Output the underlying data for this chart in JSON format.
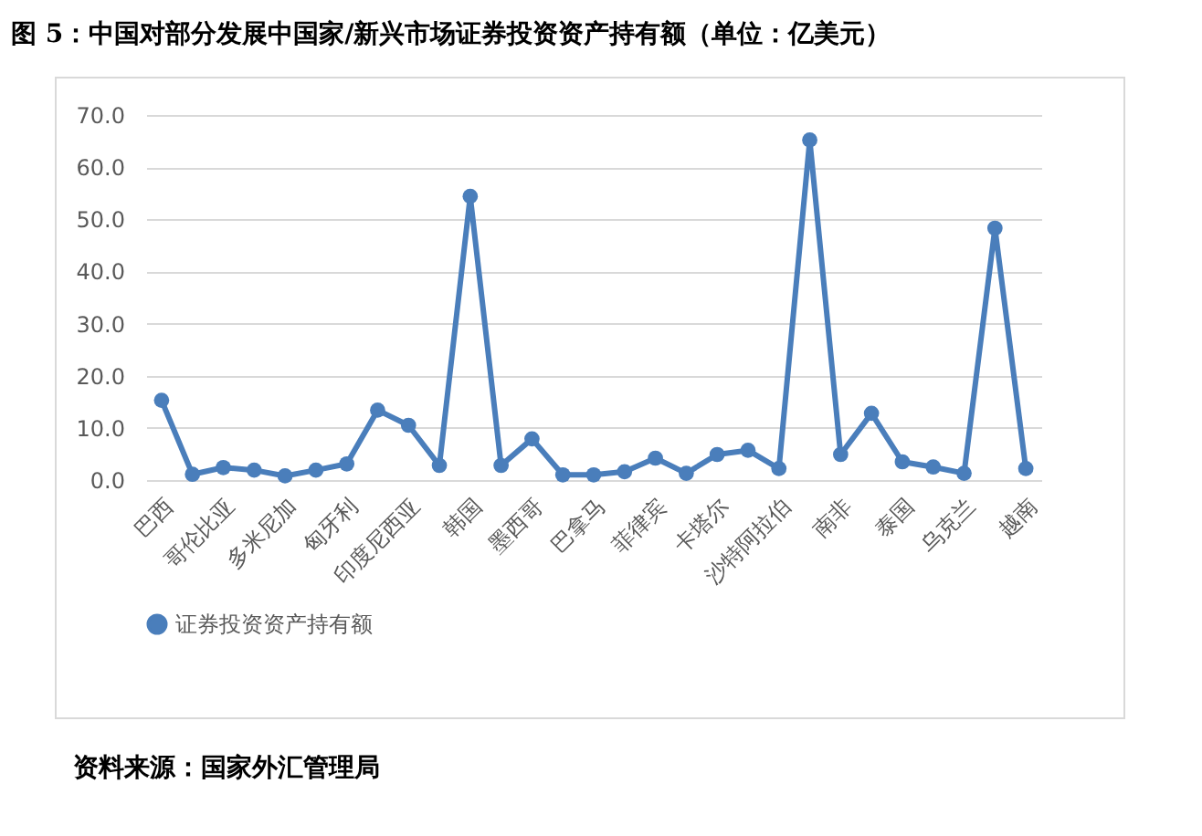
{
  "chart_data": {
    "type": "line",
    "title": "图 5：中国对部分发展中国家/新兴市场证券投资资产持有额（单位：亿美元）",
    "categories": [
      "巴西",
      null,
      "哥伦比亚",
      null,
      "多米尼加",
      null,
      "匈牙利",
      null,
      "印度尼西亚",
      null,
      "韩国",
      null,
      "墨西哥",
      null,
      "巴拿马",
      null,
      "菲律宾",
      null,
      "卡塔尔",
      null,
      "沙特阿拉伯",
      null,
      "南非",
      null,
      "泰国",
      null,
      "乌克兰",
      null,
      "越南"
    ],
    "series": [
      {
        "name": "证券投资资产持有额",
        "color": "#4a7ebb",
        "values": [
          15.3,
          1.1,
          2.4,
          1.9,
          0.8,
          1.9,
          3.1,
          13.4,
          10.5,
          2.8,
          54.4,
          2.8,
          7.9,
          1.0,
          1.0,
          1.6,
          4.2,
          1.3,
          4.9,
          5.7,
          2.2,
          65.2,
          4.9,
          12.8,
          3.5,
          2.5,
          1.3,
          48.3,
          2.2
        ]
      }
    ],
    "ylim": [
      0,
      70
    ],
    "yticks": [
      {
        "value": 0,
        "label": "0.0"
      },
      {
        "value": 10,
        "label": "10.0"
      },
      {
        "value": 20,
        "label": "20.0"
      },
      {
        "value": 30,
        "label": "30.0"
      },
      {
        "value": 40,
        "label": "40.0"
      },
      {
        "value": 50,
        "label": "50.0"
      },
      {
        "value": 60,
        "label": "60.0"
      },
      {
        "value": 70,
        "label": "70.0"
      }
    ],
    "grid": "y",
    "legend": "bottom",
    "marker": "circle",
    "line_style": "solid",
    "annotations": [
      "资料来源：国家外汇管理局"
    ]
  }
}
